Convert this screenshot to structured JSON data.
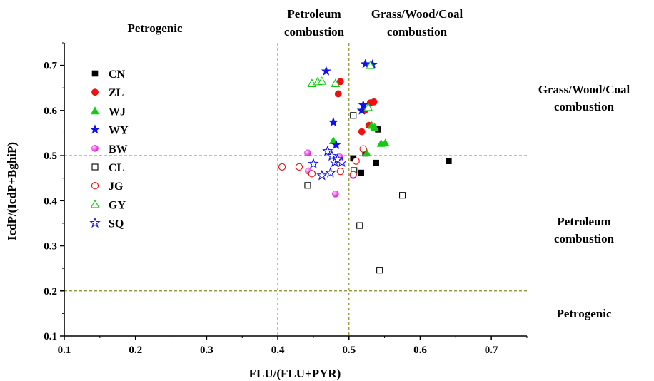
{
  "chart_data": {
    "type": "scatter",
    "xlabel": "FLU/(FLU+PYR)",
    "ylabel": "IcdP/(IcdP+BghiP)",
    "xlim": [
      0.1,
      0.75
    ],
    "ylim": [
      0.1,
      0.75
    ],
    "xticks": [
      "0.1",
      "0.2",
      "0.3",
      "0.4",
      "0.5",
      "0.6",
      "0.7"
    ],
    "yticks": [
      "0.1",
      "0.2",
      "0.3",
      "0.4",
      "0.5",
      "0.6",
      "0.7"
    ],
    "grid": false,
    "legend_position": "top-left inside",
    "reference_lines": {
      "x": [
        0.4,
        0.5
      ],
      "y": [
        0.2,
        0.5
      ],
      "color": "#8a8a2a",
      "style": "dashed"
    },
    "region_labels": {
      "top_left": "Petrogenic",
      "top_middle": [
        "Petroleum",
        "combustion"
      ],
      "top_right": [
        "Grass/Wood/Coal",
        "combustion"
      ],
      "right_upper": [
        "Grass/Wood/Coal",
        "combustion"
      ],
      "right_middle": [
        "Petroleum",
        "combustion"
      ],
      "right_lower": "Petrogenic"
    },
    "series": [
      {
        "name": "CN",
        "marker": "square",
        "filled": true,
        "color": "#000000",
        "points": [
          [
            0.506,
            0.494
          ],
          [
            0.517,
            0.462
          ],
          [
            0.523,
            0.505
          ],
          [
            0.538,
            0.484
          ],
          [
            0.541,
            0.558
          ],
          [
            0.64,
            0.488
          ]
        ]
      },
      {
        "name": "ZL",
        "marker": "circle",
        "filled": true,
        "color": "#ee1111",
        "points": [
          [
            0.485,
            0.637
          ],
          [
            0.488,
            0.664
          ],
          [
            0.518,
            0.553
          ],
          [
            0.522,
            0.6
          ],
          [
            0.528,
            0.567
          ],
          [
            0.53,
            0.617
          ],
          [
            0.535,
            0.619
          ]
        ]
      },
      {
        "name": "WJ",
        "marker": "triangle",
        "filled": true,
        "color": "#11cc11",
        "points": [
          [
            0.478,
            0.533
          ],
          [
            0.525,
            0.506
          ],
          [
            0.532,
            0.567
          ],
          [
            0.536,
            0.563
          ],
          [
            0.545,
            0.527
          ],
          [
            0.551,
            0.528
          ]
        ]
      },
      {
        "name": "WY",
        "marker": "star",
        "filled": true,
        "color": "#1111ee",
        "points": [
          [
            0.468,
            0.687
          ],
          [
            0.478,
            0.574
          ],
          [
            0.482,
            0.524
          ],
          [
            0.518,
            0.6
          ],
          [
            0.52,
            0.612
          ],
          [
            0.523,
            0.703
          ],
          [
            0.533,
            0.702
          ]
        ]
      },
      {
        "name": "BW",
        "marker": "sphere",
        "filled": true,
        "color": "#ee33ee",
        "points": [
          [
            0.442,
            0.506
          ],
          [
            0.443,
            0.466
          ],
          [
            0.481,
            0.415
          ],
          [
            0.487,
            0.497
          ],
          [
            0.506,
            0.456
          ]
        ]
      },
      {
        "name": "CL",
        "marker": "square",
        "filled": false,
        "color": "#000000",
        "points": [
          [
            0.442,
            0.434
          ],
          [
            0.506,
            0.589
          ],
          [
            0.507,
            0.467
          ],
          [
            0.515,
            0.345
          ],
          [
            0.543,
            0.246
          ],
          [
            0.575,
            0.412
          ]
        ]
      },
      {
        "name": "JG",
        "marker": "circle",
        "filled": false,
        "color": "#ee1111",
        "points": [
          [
            0.406,
            0.475
          ],
          [
            0.43,
            0.475
          ],
          [
            0.448,
            0.46
          ],
          [
            0.488,
            0.465
          ],
          [
            0.506,
            0.458
          ],
          [
            0.51,
            0.488
          ],
          [
            0.52,
            0.515
          ]
        ]
      },
      {
        "name": "GY",
        "marker": "triangle",
        "filled": false,
        "color": "#11cc11",
        "points": [
          [
            0.448,
            0.66
          ],
          [
            0.456,
            0.664
          ],
          [
            0.462,
            0.665
          ],
          [
            0.481,
            0.66
          ],
          [
            0.527,
            0.607
          ],
          [
            0.53,
            0.7
          ]
        ]
      },
      {
        "name": "SQ",
        "marker": "star",
        "filled": false,
        "color": "#1111ee",
        "points": [
          [
            0.45,
            0.482
          ],
          [
            0.462,
            0.456
          ],
          [
            0.47,
            0.51
          ],
          [
            0.474,
            0.462
          ],
          [
            0.476,
            0.499
          ],
          [
            0.48,
            0.485
          ],
          [
            0.484,
            0.492
          ],
          [
            0.49,
            0.485
          ]
        ]
      }
    ]
  }
}
